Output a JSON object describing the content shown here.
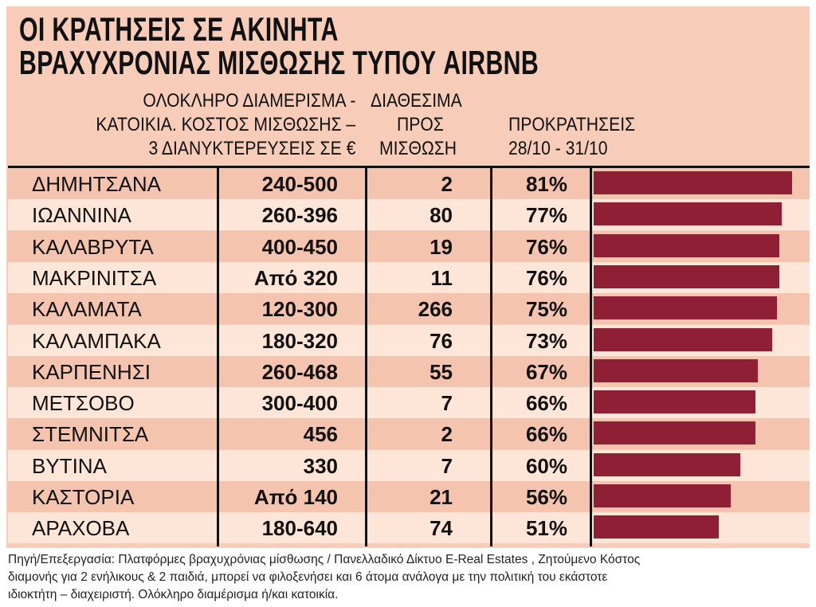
{
  "title_lines": [
    "ΟΙ ΚΡΑΤΗΣΕΙΣ ΣΕ ΑΚΙΝΗΤΑ",
    "ΒΡΑΧΥΧΡΟΝΙΑΣ ΜΙΣΘΩΣΗΣ ΤΥΠΟΥ AIRBNB"
  ],
  "headers": {
    "cost": [
      "ΟΛΟΚΛΗΡΟ ΔΙΑΜΕΡΙΣΜΑ -",
      "ΚΑΤΟΙΚΙΑ. ΚΟΣΤΟΣ ΜΙΣΘΩΣΗΣ –",
      "3 ΔΙΑΝΥΚΤΕΡΕΥΣΕΙΣ ΣΕ €"
    ],
    "available": [
      "ΔΙΑΘΕΣΙΜΑ",
      "ΠΡΟΣ",
      "ΜΙΣΘΩΣΗ"
    ],
    "bookings": [
      "ΠΡΟΚΡΑΤΗΣΕΙΣ",
      "28/10 - 31/10"
    ]
  },
  "colors": {
    "bar": "#8f1f35",
    "row_dark": "#f4c4ae",
    "row_light": "#fde5d7",
    "panel": "#f7cdb9"
  },
  "chart_data": {
    "type": "bar",
    "orientation": "horizontal",
    "categories": [
      "ΔΗΜΗΤΣΑΝΑ",
      "ΙΩΑΝΝΙΝΑ",
      "ΚΑΛΑΒΡΥΤΑ",
      "ΜΑΚΡΙΝΙΤΣΑ",
      "ΚΑΛΑΜΑΤΑ",
      "ΚΑΛΑΜΠΑΚΑ",
      "ΚΑΡΠΕΝΗΣΙ",
      "ΜΕΤΣΟΒΟ",
      "ΣΤΕΜΝΙΤΣΑ",
      "ΒΥΤΙΝΑ",
      "ΚΑΣΤΟΡΙΑ",
      "ΑΡΑΧΟΒΑ"
    ],
    "cost": [
      "240-500",
      "260-396",
      "400-450",
      "Από 320",
      "120-300",
      "180-320",
      "260-468",
      "300-400",
      "456",
      "330",
      "Από 140",
      "180-640"
    ],
    "available": [
      "2",
      "80",
      "19",
      "11",
      "266",
      "76",
      "55",
      "7",
      "2",
      "7",
      "21",
      "74"
    ],
    "values": [
      81,
      77,
      76,
      76,
      75,
      73,
      67,
      66,
      66,
      60,
      56,
      51
    ],
    "labels": [
      "81%",
      "77%",
      "76%",
      "76%",
      "75%",
      "73%",
      "67%",
      "66%",
      "66%",
      "60%",
      "56%",
      "51%"
    ],
    "unit": "%"
  },
  "footnote": [
    "Πηγή/Επεξεργασία: Πλατφόρμες βραχυχρόνιας μίσθωσης / Πανελλαδικό Δίκτυο E-Real Estates , Ζητούμενο Κόστος",
    "διαμονής για 2 ενήλικους & 2 παιδιά, μπορεί να φιλοξενήσει και 6 άτομα ανάλογα με την πολιτική του εκάστοτε",
    "ιδιοκτήτη – διαχειριστή. Ολόκληρο διαμέρισμα ή/και κατοικία."
  ]
}
